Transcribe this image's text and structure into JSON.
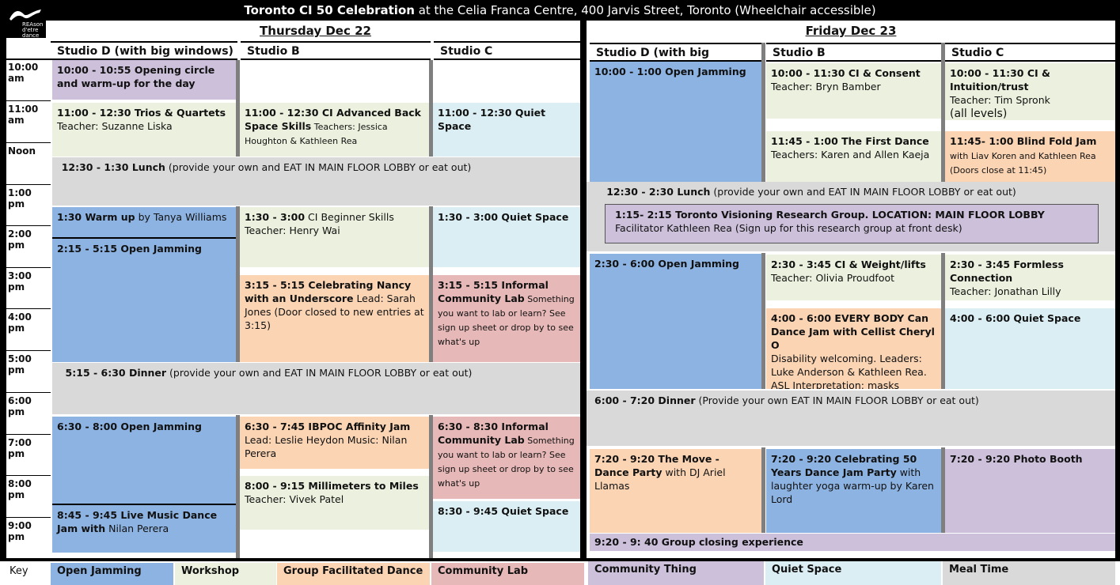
{
  "title": {
    "bold": "Toronto CI 50 Celebration",
    "rest": " at the Celia Franca Centre, 400 Jarvis Street, Toronto (Wheelchair accessible)"
  },
  "logo": {
    "text": "REAson d'etre dance"
  },
  "days": {
    "thursday": "Thursday Dec 22",
    "friday": "Friday Dec 23"
  },
  "studios": {
    "studio_d": "Studio D (with big windows)",
    "studio_b": "Studio B",
    "studio_c": "Studio C"
  },
  "times": [
    "10:00 am",
    "11:00 am",
    "Noon",
    "1:00 pm",
    "2:00 pm",
    "3:00 pm",
    "4:00 pm",
    "5:00 pm",
    "6:00 pm",
    "7:00 pm",
    "8:00 pm",
    "9:00 pm"
  ],
  "thu": {
    "d1": {
      "t": "10:00 - 10:55 Opening circle and warm-up for the day",
      "r": ""
    },
    "d2": {
      "t": "11:00 - 12:30 Trios & Quartets",
      "r": "Teacher: Suzanne Liska"
    },
    "b2": {
      "t": "11:00 - 12:30 CI Advanced Back Space Skills",
      "r": " Teachers: Jessica Houghton & Kathleen Rea"
    },
    "c2": {
      "t": "11:00 - 12:30 Quiet Space",
      "r": ""
    },
    "lunch": {
      "t": "12:30 - 1:30 Lunch",
      "r": " (provide your own and EAT IN MAIN FLOOR LOBBY or eat out)"
    },
    "d3": {
      "t": "1:30 Warm up",
      "r": " by Tanya Williams"
    },
    "d4": {
      "t": "2:15 - 5:15 Open Jamming",
      "r": ""
    },
    "b3": {
      "t": "1:30 - 3:00",
      "r": " CI Beginner Skills Teacher: Henry Wai"
    },
    "c3": {
      "t": "1:30 - 3:00 Quiet Space",
      "r": ""
    },
    "b4": {
      "t": "3:15 - 5:15 Celebrating Nancy with an Underscore",
      "r": " Lead: Sarah Jones (Door closed to new entries at 3:15)"
    },
    "c4": {
      "t": "3:15 - 5:15 Informal Community Lab",
      "r": " Something you want to lab or learn? See sign up sheet or drop by to see what's up"
    },
    "dinner": {
      "t": "5:15 - 6:30 Dinner",
      "r": " (provide your own and EAT IN MAIN FLOOR LOBBY or eat out)"
    },
    "d5": {
      "t": "6:30 - 8:00 Open Jamming",
      "r": ""
    },
    "b5": {
      "t": "6:30 - 7:45 IBPOC Affinity Jam",
      "r": " Lead: Leslie Heydon Music: Nilan Perera"
    },
    "c5": {
      "t": "6:30 - 8:30 Informal Community Lab",
      "r": "  Something you want to lab or learn? See sign up sheet or drop by to see what's up"
    },
    "b6": {
      "t": "8:00 - 9:15 Millimeters to Miles",
      "r": "Teacher: Vivek Patel"
    },
    "d6": {
      "t": "8:45 - 9:45 Live Music Dance  Jam with",
      "r": " Nilan Perera"
    },
    "c6": {
      "t": "8:30 - 9:45 Quiet Space",
      "r": ""
    }
  },
  "fri": {
    "d1": {
      "t": "10:00 - 1:00 Open Jamming",
      "r": ""
    },
    "b1": {
      "t": "10:00 - 11:30 CI & Consent",
      "r": "Teacher: Bryn Bamber"
    },
    "c1": {
      "t": "10:00 - 11:30 CI & Intuition/trust",
      "r": "Teacher: Tim Spronk",
      "r2": "(all levels)"
    },
    "b2": {
      "t": "11:45 - 1:00 The First Dance",
      "r": "Teachers: Karen and Allen Kaeja"
    },
    "c2": {
      "t": "11:45- 1:00 Blind Fold Jam",
      "r": " with Liav Koren and Kathleen Rea (Doors close at 11:45)"
    },
    "lunch": {
      "t": "12:30 - 2:30 Lunch",
      "r": " (provide your own and EAT IN MAIN FLOOR LOBBY or eat out)"
    },
    "research": {
      "t": "1:15- 2:15 Toronto Visioning Research Group. LOCATION: MAIN FLOOR LOBBY",
      "r": "Facilitator Kathleen Rea (Sign up for this research group at front desk)"
    },
    "d2": {
      "t": "2:30 - 6:00 Open Jamming",
      "r": ""
    },
    "b3": {
      "t": "2:30 - 3:45 CI & Weight/lifts",
      "r": "Teacher: Olivia Proudfoot"
    },
    "c3": {
      "t": "2:30 - 3:45 Formless Connection",
      "r": "Teacher: Jonathan Lilly"
    },
    "b4": {
      "t": "4:00 - 6:00 EVERY BODY Can Dance Jam with Cellist Cheryl O",
      "r": "Disability welcoming. Leaders: Luke Anderson & Kathleen Rea. ASL Interpretation; masks required"
    },
    "c4": {
      "t": "4:00 - 6:00 Quiet Space",
      "r": ""
    },
    "dinner": {
      "t": "6:00 - 7:20 Dinner",
      "r": " (Provide your own EAT IN MAIN FLOOR LOBBY or eat out)"
    },
    "d5": {
      "t": "7:20 - 9:20 The Move - Dance Party",
      "r": " with DJ Ariel Llamas"
    },
    "b5": {
      "t": "7:20 - 9:20 Celebrating 50 Years Dance Jam Party",
      "r": " with laughter yoga warm-up by Karen Lord"
    },
    "c5": {
      "t": "7:20 - 9:20 Photo Booth",
      "r": ""
    },
    "closing": {
      "t": "9:20 - 9: 40 Group closing experience",
      "r": ""
    }
  },
  "key": {
    "label": "Key",
    "open": "Open Jamming",
    "workshop": "Workshop",
    "group": "Group Facilitated Dance",
    "lab": "Community Lab",
    "thing": "Community Thing",
    "quiet": "Quiet Space",
    "meal": "Meal Time"
  },
  "colors": {
    "open_jamming": "#8db3e2",
    "workshop": "#ebf1de",
    "group_facilitated": "#fbd4b4",
    "community_lab": "#e6b8b7",
    "community_thing": "#ccc0da",
    "quiet_space": "#daeef3",
    "meal": "#d9d9d9"
  }
}
